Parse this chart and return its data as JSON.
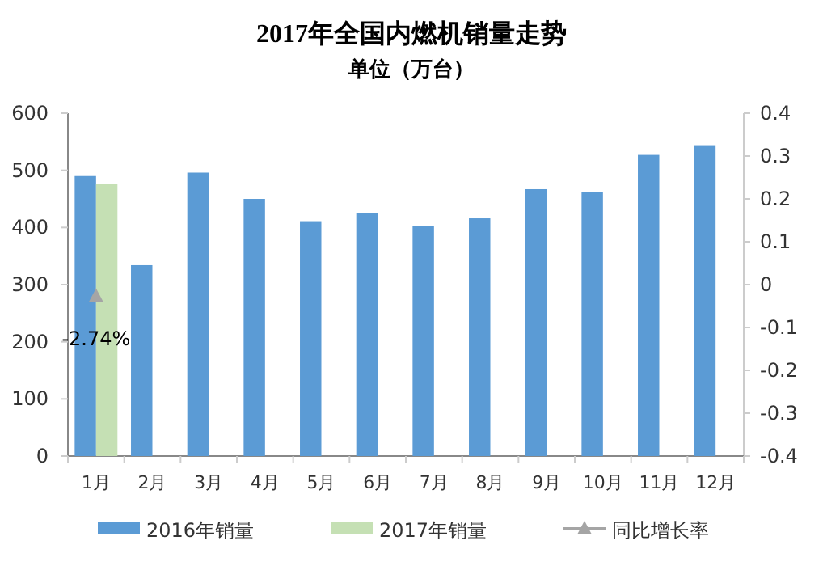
{
  "chart_data": {
    "type": "bar",
    "title": "2017年全国内燃机销量走势",
    "subtitle": "单位（万台）",
    "categories": [
      "1月",
      "2月",
      "3月",
      "4月",
      "5月",
      "6月",
      "7月",
      "8月",
      "9月",
      "10月",
      "11月",
      "12月"
    ],
    "series": [
      {
        "name": "2016年销量",
        "color": "#5b9bd5",
        "values": [
          490,
          334,
          496,
          450,
          411,
          425,
          402,
          416,
          467,
          462,
          527,
          544
        ]
      },
      {
        "name": "2017年销量",
        "color": "#c5e0b4",
        "values": [
          476,
          null,
          null,
          null,
          null,
          null,
          null,
          null,
          null,
          null,
          null,
          null
        ]
      },
      {
        "name": "同比增长率",
        "type": "line",
        "axis": "y2",
        "color": "#a5a5a5",
        "marker": "triangle",
        "values": [
          -0.0274,
          null,
          null,
          null,
          null,
          null,
          null,
          null,
          null,
          null,
          null,
          null
        ],
        "value_labels": [
          "-2.74%",
          null,
          null,
          null,
          null,
          null,
          null,
          null,
          null,
          null,
          null,
          null
        ]
      }
    ],
    "ylim": [
      0,
      600
    ],
    "yticks": [
      0,
      100,
      200,
      300,
      400,
      500,
      600
    ],
    "y2lim": [
      -0.4,
      0.4
    ],
    "y2ticks": [
      -0.4,
      -0.3,
      -0.2,
      -0.1,
      0,
      0.1,
      0.2,
      0.3,
      0.4
    ],
    "grid": false,
    "legend": "bottom"
  }
}
